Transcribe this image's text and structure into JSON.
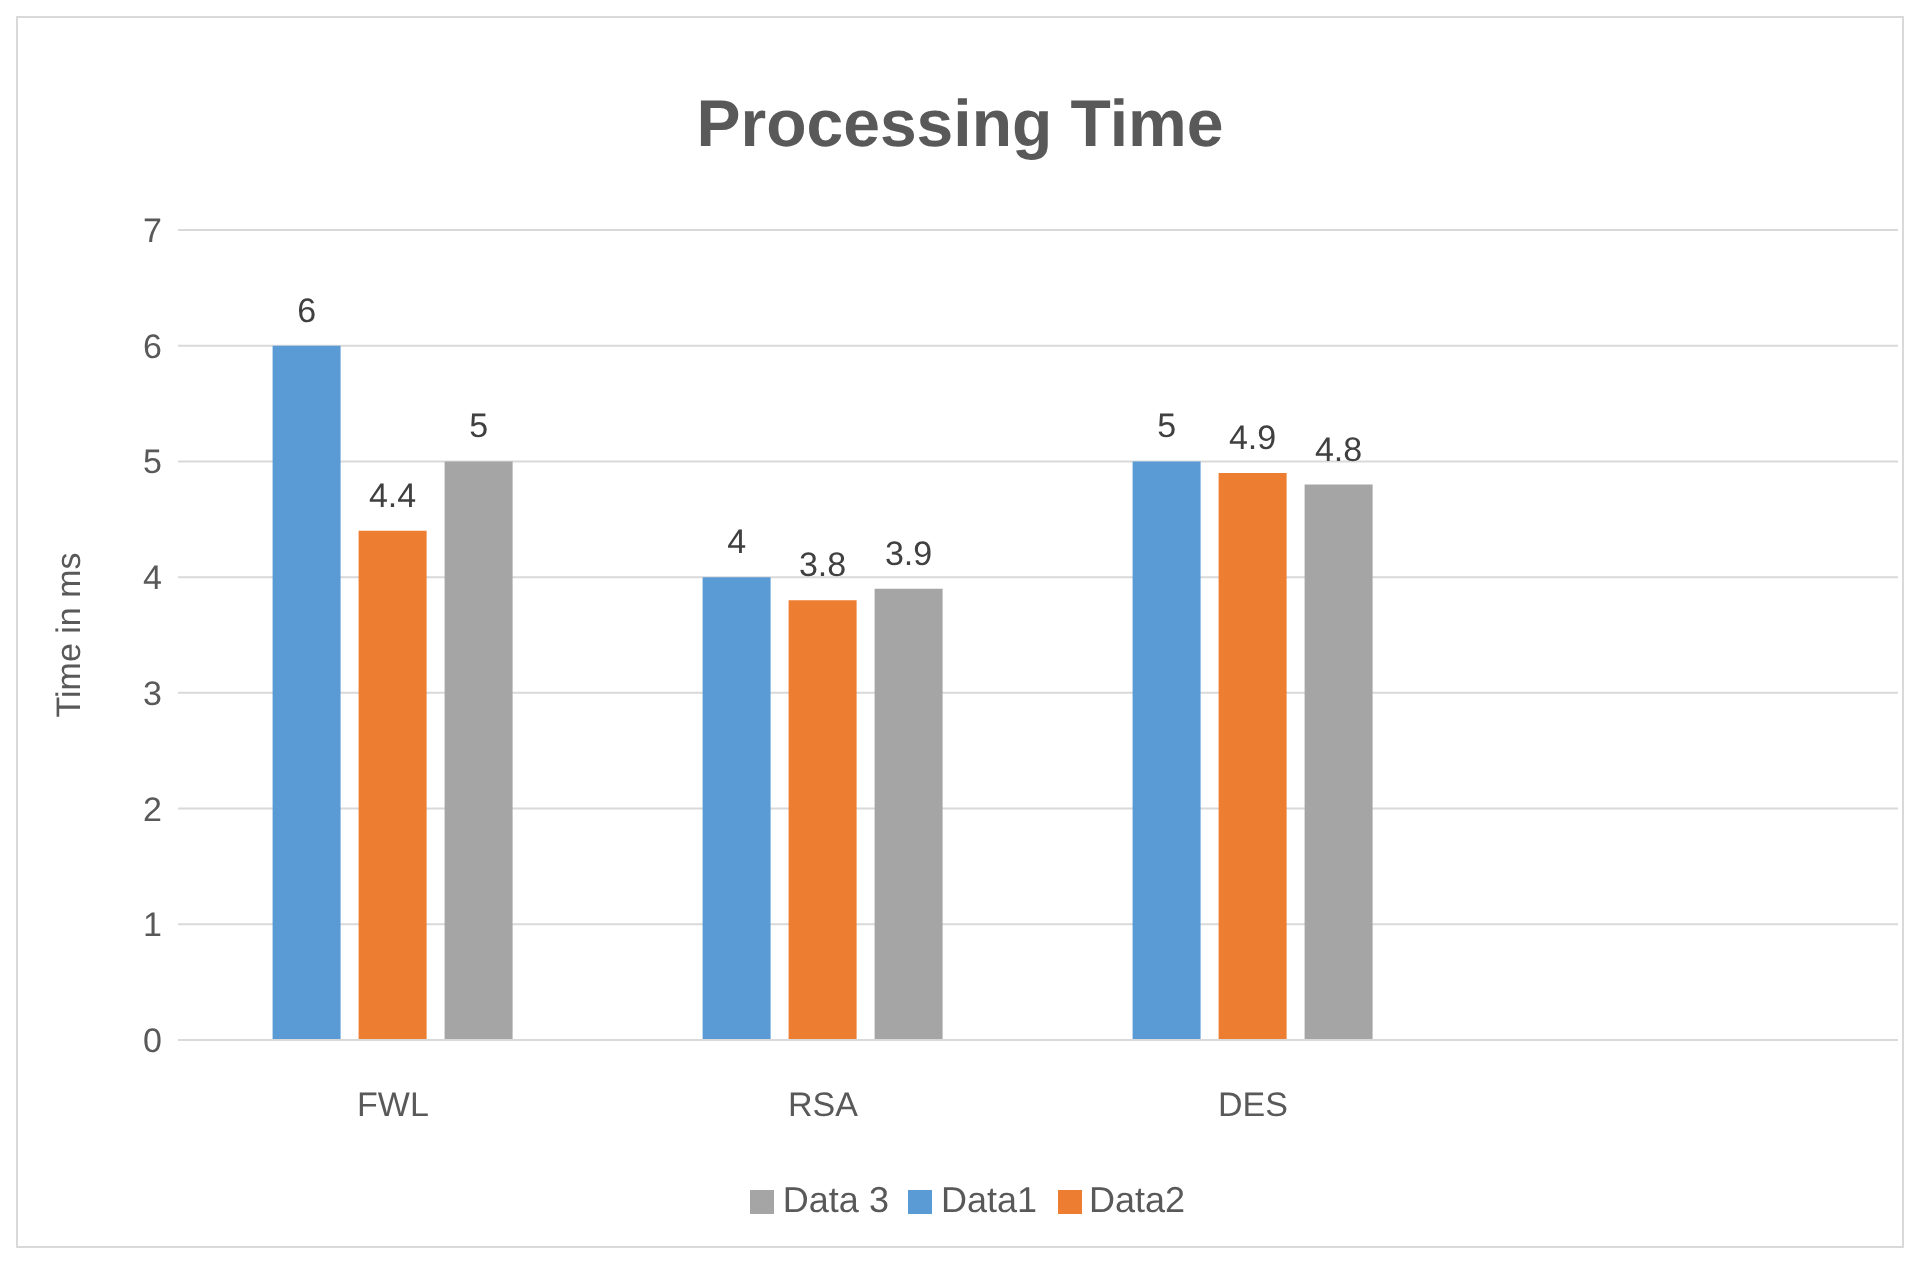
{
  "chart_data": {
    "type": "bar",
    "title": "Processing Time",
    "ylabel": "Time in ms",
    "categories": [
      "FWL",
      "RSA",
      "DES",
      null
    ],
    "series": [
      {
        "name": "Data1",
        "color": "#5b9bd5",
        "values": [
          6,
          4,
          5,
          null
        ]
      },
      {
        "name": "Data2",
        "color": "#ed7d31",
        "values": [
          4.4,
          3.8,
          4.9,
          null
        ]
      },
      {
        "name": "Data 3",
        "color": "#a5a5a5",
        "values": [
          5,
          3.9,
          4.8,
          null
        ]
      }
    ],
    "ylim": [
      0,
      7
    ],
    "yticks": [
      0,
      1,
      2,
      3,
      4,
      5,
      6,
      7
    ],
    "grid": "y",
    "legend": "bottom",
    "data_labels": true
  }
}
